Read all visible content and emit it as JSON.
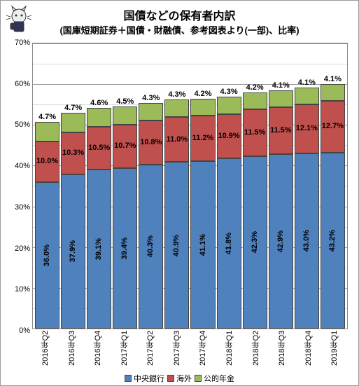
{
  "title": {
    "main": "国債などの保有者内訳",
    "sub": "(国庫短期証券＋国債・財融債、参考図表より(一部)、比率)",
    "main_fontsize": 16,
    "sub_fontsize": 13
  },
  "chart": {
    "type": "stacked-bar",
    "ylim": [
      0,
      70
    ],
    "ytick_step": 10,
    "ytick_suffix": "%",
    "label_fontsize": 11,
    "tick_fontsize": 11,
    "grid_major_color": "#999999",
    "grid_minor_color": "#d9d9d9",
    "background": "#ffffff",
    "categories": [
      "2016年Q2",
      "2016年Q3",
      "2016年Q4",
      "2017年Q1",
      "2017年Q2",
      "2017年Q3",
      "2017年Q4",
      "2018年Q1",
      "2018年Q2",
      "2018年Q3",
      "2018年Q4",
      "2019年Q1"
    ],
    "series": [
      {
        "name": "中央銀行",
        "color": "#4f81bd",
        "values": [
          36.0,
          37.9,
          39.1,
          39.4,
          40.3,
          40.9,
          41.1,
          41.8,
          42.3,
          42.9,
          43.0,
          43.2
        ]
      },
      {
        "name": "海外",
        "color": "#c0504d",
        "values": [
          10.0,
          10.3,
          10.5,
          10.7,
          10.8,
          11.0,
          11.2,
          10.9,
          11.5,
          11.5,
          12.1,
          12.7
        ]
      },
      {
        "name": "公的年金",
        "color": "#9bbb59",
        "values": [
          4.7,
          4.7,
          4.6,
          4.5,
          4.3,
          4.3,
          4.2,
          4.3,
          4.2,
          4.1,
          4.1,
          4.1
        ]
      }
    ]
  },
  "legend": {
    "fontsize": 11
  },
  "icon": {
    "name": "cat-mascot-icon"
  }
}
